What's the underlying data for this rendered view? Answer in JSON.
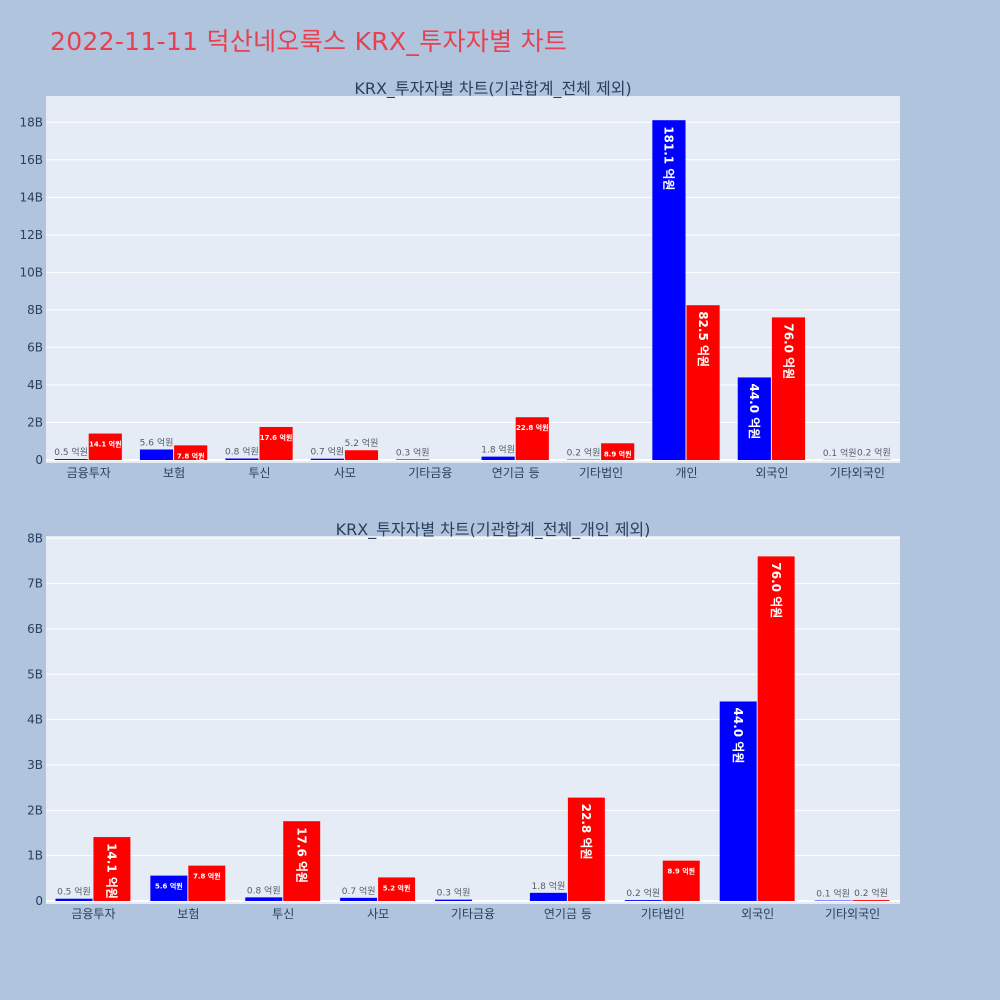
{
  "title": "2022-11-11 덕산네오룩스 KRX_투자자별 차트",
  "colors": {
    "title": "#e8404e",
    "plot_bg": "#e5ecf6",
    "page_bg": "#b0c4de",
    "series_a": "#0000ff",
    "series_b": "#ff0000"
  },
  "chart_data": [
    {
      "type": "bar",
      "title": "KRX_투자자별 차트(기관합계_전체 제외)",
      "categories": [
        "금융투자",
        "보험",
        "투신",
        "사모",
        "기타금융",
        "연기금 등",
        "기타법인",
        "개인",
        "외국인",
        "기타외국인"
      ],
      "ylim": [
        0,
        19400000000
      ],
      "yticks": [
        0,
        2000000000,
        4000000000,
        6000000000,
        8000000000,
        10000000000,
        12000000000,
        14000000000,
        16000000000,
        18000000000
      ],
      "ytick_labels": [
        "0",
        "2B",
        "4B",
        "6B",
        "8B",
        "10B",
        "12B",
        "14B",
        "16B",
        "18B"
      ],
      "grid": true,
      "series": [
        {
          "color": "#0000ff",
          "values": [
            50000000,
            560000000,
            80000000,
            70000000,
            30000000,
            180000000,
            20000000,
            18110000000,
            4400000000,
            10000000
          ],
          "labels": [
            "0.5 억원",
            "5.6 억원",
            "0.8 억원",
            "0.7 억원",
            "0.3 억원",
            "1.8 억원",
            "0.2 억원",
            "181.1 억원",
            "44.0 억원",
            "0.1 억원"
          ]
        },
        {
          "color": "#ff0000",
          "values": [
            1410000000,
            780000000,
            1760000000,
            520000000,
            0,
            2280000000,
            890000000,
            8250000000,
            7600000000,
            20000000
          ],
          "labels": [
            "14.1 억원",
            "7.8 억원",
            "17.6 억원",
            "5.2 억원",
            "",
            "22.8 억원",
            "8.9 억원",
            "82.5 억원",
            "76.0 억원",
            "0.2 억원"
          ]
        }
      ]
    },
    {
      "type": "bar",
      "title": "KRX_투자자별 차트(기관합계_전체_개인 제외)",
      "categories": [
        "금융투자",
        "보험",
        "투신",
        "사모",
        "기타금융",
        "연기금 등",
        "기타법인",
        "외국인",
        "기타외국인"
      ],
      "ylim": [
        0,
        8050000000
      ],
      "yticks": [
        0,
        1000000000,
        2000000000,
        3000000000,
        4000000000,
        5000000000,
        6000000000,
        7000000000,
        8000000000
      ],
      "ytick_labels": [
        "0",
        "1B",
        "2B",
        "3B",
        "4B",
        "5B",
        "6B",
        "7B",
        "8B"
      ],
      "grid": true,
      "series": [
        {
          "color": "#0000ff",
          "values": [
            50000000,
            560000000,
            80000000,
            70000000,
            30000000,
            180000000,
            20000000,
            4400000000,
            10000000
          ],
          "labels": [
            "0.5 억원",
            "5.6 억원",
            "0.8 억원",
            "0.7 억원",
            "0.3 억원",
            "1.8 억원",
            "0.2 억원",
            "44.0 억원",
            "0.1 억원"
          ]
        },
        {
          "color": "#ff0000",
          "values": [
            1410000000,
            780000000,
            1760000000,
            520000000,
            0,
            2280000000,
            890000000,
            7600000000,
            20000000
          ],
          "labels": [
            "14.1 억원",
            "7.8 억원",
            "17.6 억원",
            "5.2 억원",
            "",
            "22.8 억원",
            "8.9 억원",
            "76.0 억원",
            "0.2 억원"
          ]
        }
      ]
    }
  ]
}
